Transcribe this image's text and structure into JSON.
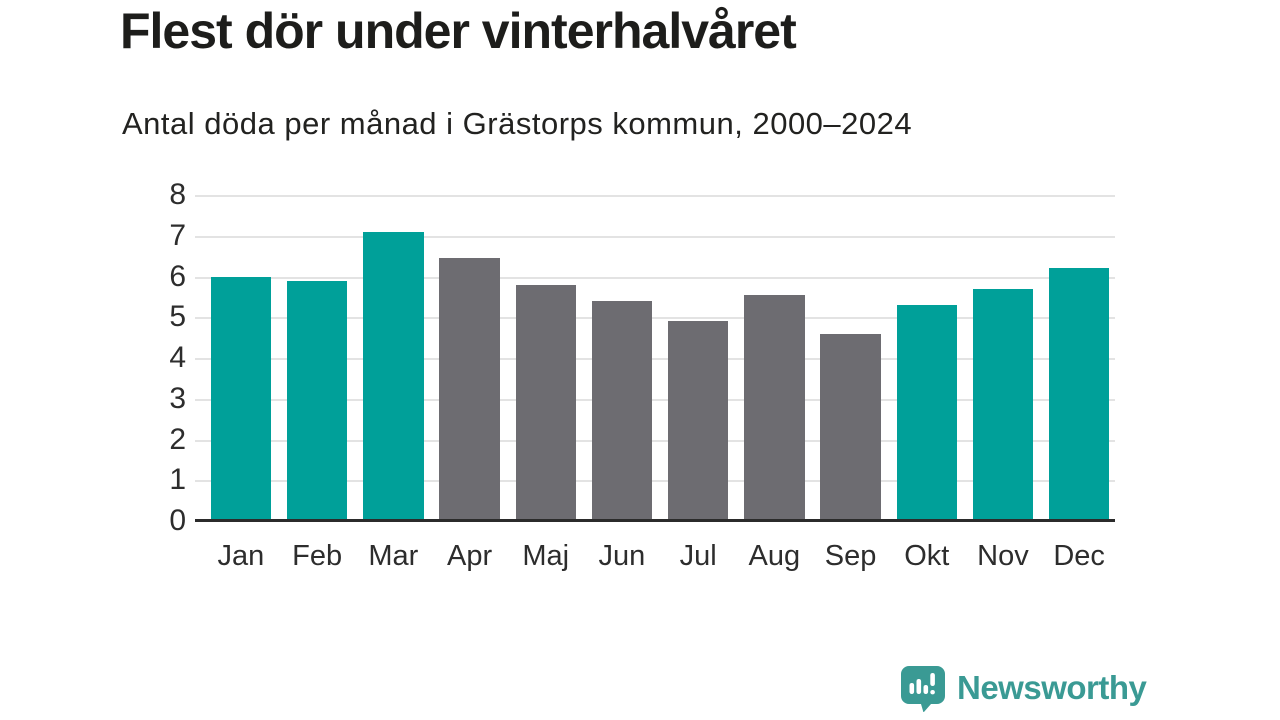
{
  "chart_data": {
    "type": "bar",
    "title": "Flest dör under vinterhalvåret",
    "subtitle": "Antal döda per månad i Grästorps kommun, 2000–2024",
    "categories": [
      "Jan",
      "Feb",
      "Mar",
      "Apr",
      "Maj",
      "Jun",
      "Jul",
      "Aug",
      "Sep",
      "Okt",
      "Nov",
      "Dec"
    ],
    "values": [
      6.0,
      5.9,
      7.1,
      6.45,
      5.8,
      5.4,
      4.9,
      5.55,
      4.6,
      5.3,
      5.7,
      6.2
    ],
    "bar_colors": [
      "#00a099",
      "#00a099",
      "#00a099",
      "#6d6c71",
      "#6d6c71",
      "#6d6c71",
      "#6d6c71",
      "#6d6c71",
      "#6d6c71",
      "#00a099",
      "#00a099",
      "#00a099"
    ],
    "highlighted_categories": [
      "Jan",
      "Feb",
      "Mar",
      "Okt",
      "Nov",
      "Dec"
    ],
    "colors": {
      "highlight": "#00a099",
      "default": "#6d6c71",
      "gridline": "#e3e3e3",
      "axis": "#2b2b2b"
    },
    "xlabel": "",
    "ylabel": "",
    "ylim": [
      0,
      8
    ],
    "yticks": [
      0,
      1,
      2,
      3,
      4,
      5,
      6,
      7,
      8
    ],
    "grid": "horizontal",
    "legend": "none"
  },
  "footer": {
    "brand": "Newsworthy",
    "brand_color": "#3a9a94",
    "logo_icon": "speech-bubble-bar-chart-icon"
  }
}
